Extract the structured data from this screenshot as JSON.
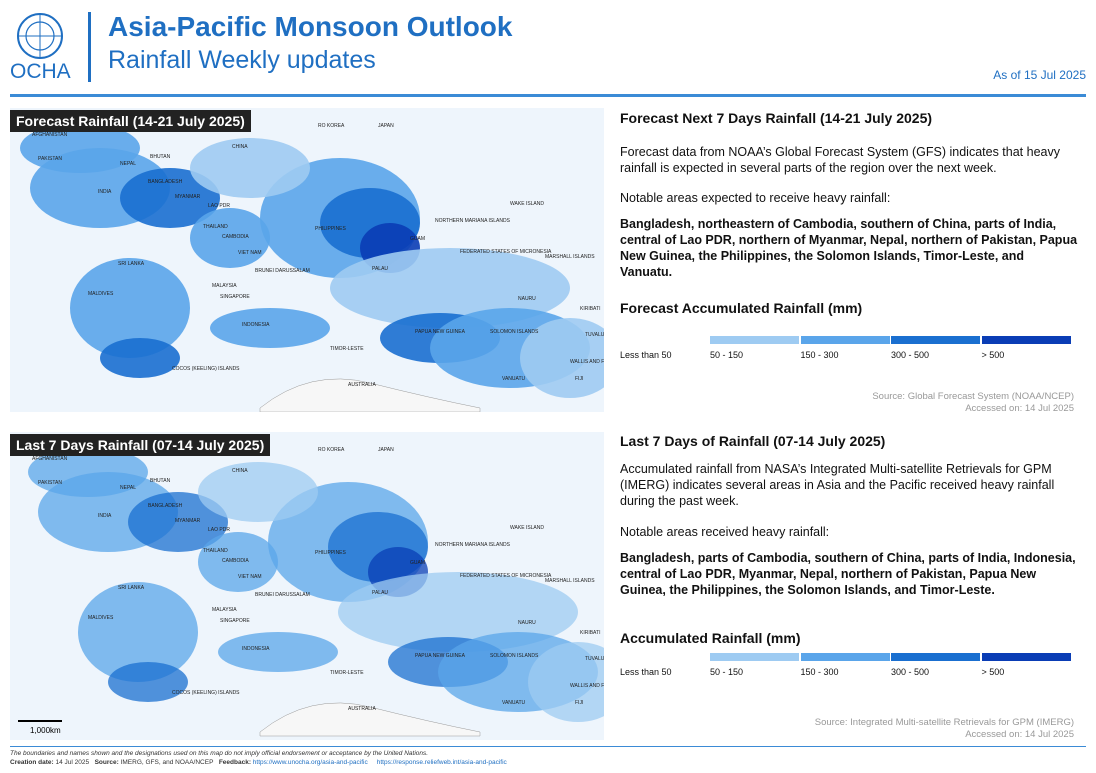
{
  "header": {
    "org": "OCHA",
    "title": "Asia-Pacific Monsoon Outlook",
    "subtitle": "Rainfall Weekly updates",
    "date": "As of 15 Jul 2025"
  },
  "panels": [
    {
      "map_title": "Forecast Rainfall (14-21 July 2025)",
      "heading": "Forecast Next 7 Days Rainfall (14-21 July 2025)",
      "paragraph": "Forecast data from NOAA’s Global Forecast System (GFS) indicates that heavy rainfall is expected in several parts of the region over the next week.",
      "notable_intro": "Notable areas expected to receive heavy rainfall:",
      "notable_list": "Bangladesh, northeastern of Cambodia, southern of China, parts of India, central of Lao PDR, northern of Myanmar, Nepal, northern of Pakistan, Papua New Guinea, the Philippines, the Solomon Islands, Timor-Leste, and Vanuatu.",
      "legend_title": "Forecast Accumulated Rainfall (mm)",
      "source": "Source: Global Forecast System (NOAA/NCEP)",
      "accessed": "Accessed on: 14 Jul 2025"
    },
    {
      "map_title": "Last 7 Days Rainfall (07-14 July 2025)",
      "heading": "Last 7 Days of Rainfall (07-14 July 2025)",
      "paragraph": "Accumulated rainfall from NASA’s Integrated Multi-satellite Retrievals for GPM (IMERG) indicates several areas in Asia and the Pacific received heavy rainfall during the past week.",
      "notable_intro": "Notable areas received heavy rainfall:",
      "notable_list": "Bangladesh, parts of Cambodia, southern of China, parts of India, Indonesia, central of Lao PDR, Myanmar, Nepal, northern of Pakistan, Papua New Guinea, the Philippines, the Solomon Islands, and Timor-Leste.",
      "legend_title": "Accumulated Rainfall (mm)",
      "source": "Source: Integrated Multi-satellite Retrievals for GPM (IMERG)",
      "accessed": "Accessed on: 14 Jul 2025"
    }
  ],
  "legend": [
    {
      "label": "Less than 50",
      "color": "#ffffff"
    },
    {
      "label": "50 - 150",
      "color": "#9ecbf2"
    },
    {
      "label": "150 - 300",
      "color": "#5aa5ea"
    },
    {
      "label": "300 - 500",
      "color": "#1a6fd0"
    },
    {
      "label": "> 500",
      "color": "#0a3db5"
    }
  ],
  "map_labels": [
    "AFGHANISTAN",
    "PAKISTAN",
    "NEPAL",
    "BHUTAN",
    "BANGLADESH",
    "INDIA",
    "MYANMAR",
    "LAO PDR",
    "THAILAND",
    "CAMBODIA",
    "VIET NAM",
    "SRI LANKA",
    "MALDIVES",
    "BRUNEI DARUSSALAM",
    "MALAYSIA",
    "SINGAPORE",
    "INDONESIA",
    "CHINA",
    "RO KOREA",
    "JAPAN",
    "PHILIPPINES",
    "NORTHERN MARIANA ISLANDS",
    "GUAM",
    "PALAU",
    "FEDERATED STATES OF MICRONESIA",
    "WAKE ISLAND",
    "MARSHALL ISLANDS",
    "NAURU",
    "KIRIBATI",
    "PAPUA NEW GUINEA",
    "SOLOMON ISLANDS",
    "TUVALU",
    "TIMOR-LESTE",
    "WALLIS AND FUTUNA",
    "VANUATU",
    "FIJI",
    "AUSTRALIA",
    "COCOS (KEELING) ISLANDS"
  ],
  "scale": "1,000km",
  "footer": {
    "disclaimer": "The boundaries and names shown and the designations used on this map do not imply official endorsement or acceptance by the United Nations.",
    "creation_label": "Creation date:",
    "creation_date": "14 Jul 2025",
    "source_label": "Source:",
    "source": "IMERG, GFS, and NOAA/NCEP",
    "feedback_label": "Feedback:",
    "feedback_url": "https://www.unocha.org/asia-and-pacific",
    "url2": "https://response.reliefweb.int/asia-and-pacific"
  }
}
